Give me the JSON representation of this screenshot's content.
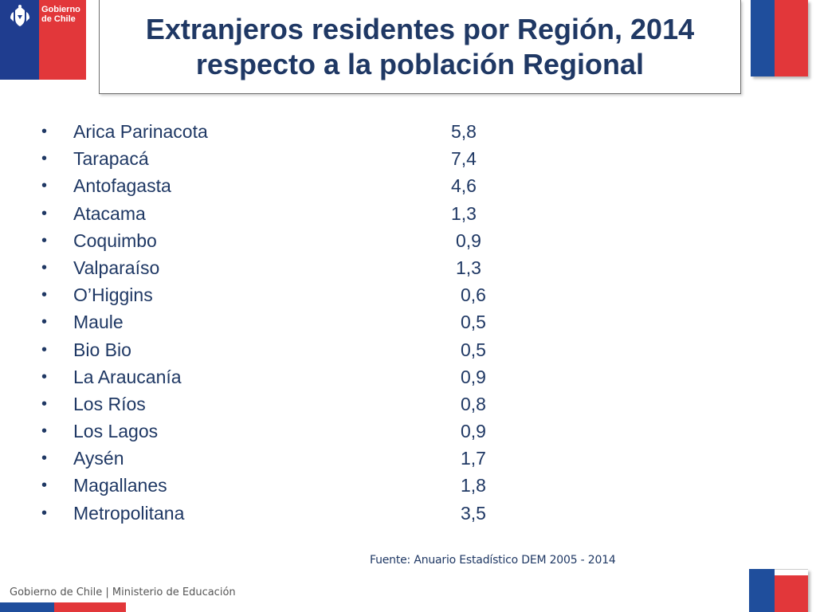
{
  "logo": {
    "text": "Gobierno\nde Chile",
    "icon": "chile-coat-of-arms-icon",
    "colors": {
      "blue": "#1f3d8f",
      "red": "#e2373a"
    }
  },
  "title": {
    "line1": "Extranjeros residentes por Región, 2014",
    "line2": "respecto a la población Regional",
    "color": "#1f3864"
  },
  "regions": [
    {
      "name": "Arica Parinacota",
      "value": "5,8"
    },
    {
      "name": "Tarapacá",
      "value": "7,4"
    },
    {
      "name": "Antofagasta",
      "value": "4,6"
    },
    {
      "name": "Atacama",
      "value": "1,3"
    },
    {
      "name": "Coquimbo",
      "value": "0,9"
    },
    {
      "name": "Valparaíso",
      "value": "1,3"
    },
    {
      "name": "O’Higgins",
      "value": "0,6"
    },
    {
      "name": "Maule",
      "value": "0,5"
    },
    {
      "name": "Bio Bio",
      "value": "0,5"
    },
    {
      "name": "La Araucanía",
      "value": "0,9"
    },
    {
      "name": "Los Ríos",
      "value": "0,8"
    },
    {
      "name": "Los Lagos",
      "value": "0,9"
    },
    {
      "name": "Aysén",
      "value": "1,7"
    },
    {
      "name": "Magallanes",
      "value": "1,8"
    },
    {
      "name": "Metropolitana",
      "value": "3,5"
    }
  ],
  "bullet": "•",
  "source": "Fuente: Anuario Estadístico DEM 2005 - 2014",
  "footer": "Gobierno de Chile | Ministerio de Educación",
  "flag_colors": {
    "blue": "#1f4e9c",
    "red": "#e2373a"
  }
}
